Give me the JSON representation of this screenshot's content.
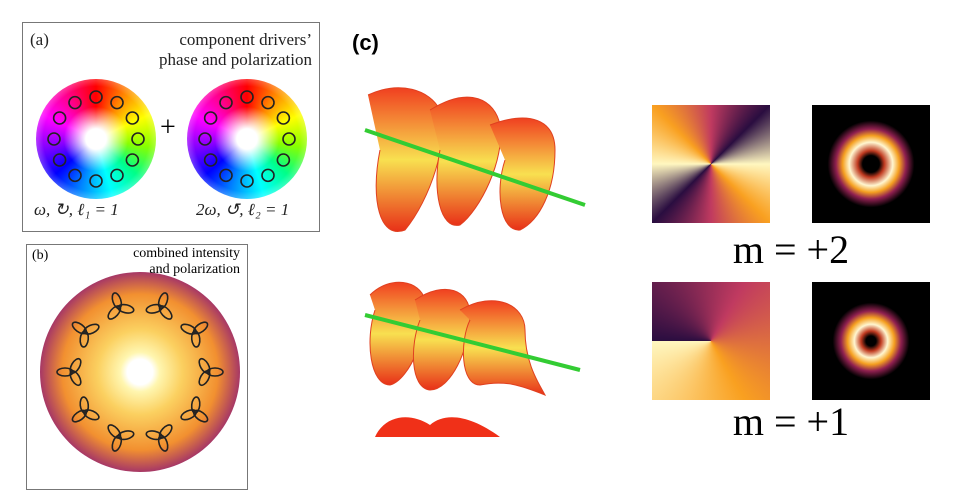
{
  "panel_a": {
    "label": "(a)",
    "title_lines": [
      "component drivers’",
      "phase and polarization"
    ],
    "left_label": "ω, ↻, ℓ₁ = 1",
    "plus": "+",
    "right_label": "2ω, ↺, ℓ₂ = 1"
  },
  "panel_b": {
    "label": "(b)",
    "title_lines": [
      "combined intensity",
      "and polarization"
    ]
  },
  "panel_c": {
    "label": "(c)",
    "rows": [
      {
        "caption": "m = +2"
      },
      {
        "caption": "m = +1"
      }
    ]
  }
}
